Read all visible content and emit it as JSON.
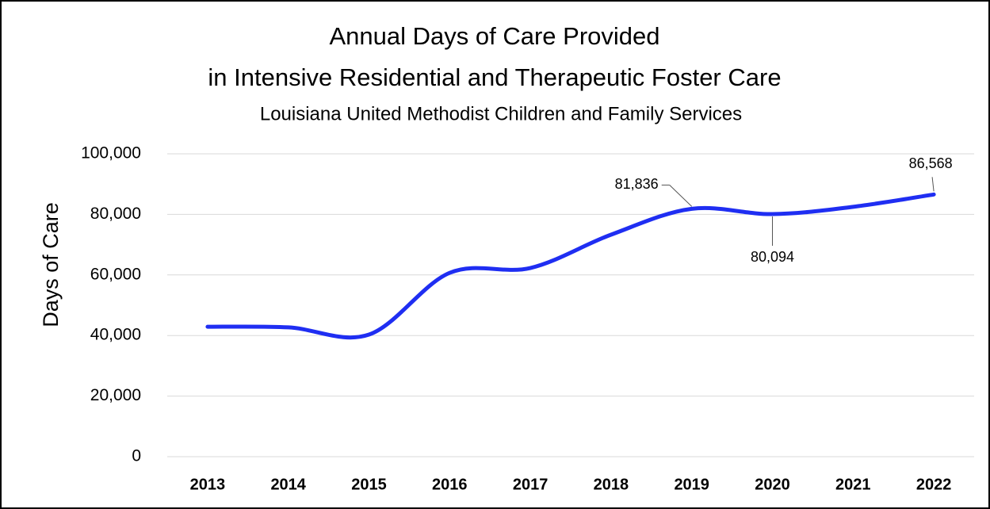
{
  "chart_data": {
    "type": "line",
    "title": [
      "Annual Days of Care Provided",
      "in Intensive Residential and Therapeutic Foster Care"
    ],
    "subtitle": "Louisiana United Methodist Children and Family Services",
    "y_label": "Days of Care",
    "categories": [
      "2013",
      "2014",
      "2015",
      "2016",
      "2017",
      "2018",
      "2019",
      "2020",
      "2021",
      "2022"
    ],
    "series": [
      {
        "name": "Days of Care",
        "color": "#1f2ef2",
        "values": [
          42900,
          42700,
          40300,
          60700,
          62300,
          73300,
          81836,
          80094,
          82500,
          86568
        ],
        "value_labels": [
          null,
          null,
          null,
          null,
          null,
          null,
          "81,836",
          "80,094",
          null,
          "86,568"
        ]
      }
    ],
    "ylim": [
      0,
      100000
    ],
    "yticks": [
      0,
      {
        "value": 20000,
        "label": "20,000"
      },
      {
        "value": 40000,
        "label": "40,000"
      },
      {
        "value": 60000,
        "label": "60,000"
      },
      {
        "value": 80000,
        "label": "80,000"
      },
      {
        "value": 100000,
        "label": "100,000"
      }
    ],
    "grid": true,
    "smooth": true
  }
}
